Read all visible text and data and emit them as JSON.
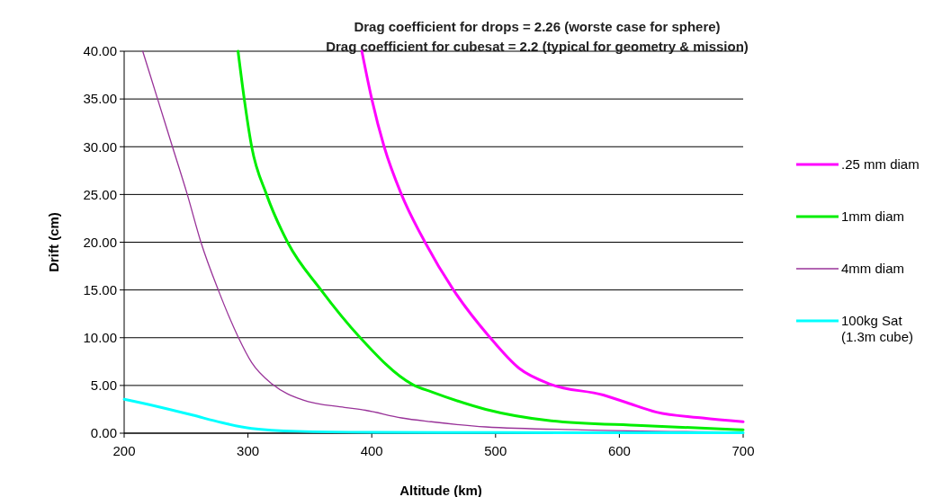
{
  "chart_data": {
    "type": "line",
    "subtitle": "Drag coefficient for drops = 2.26 (worste case for sphere)\nDrag coefficient for cubesat = 2.2 (typical for geometry & mission)",
    "xlabel": "Altitude (km)",
    "ylabel": "Drift (cm)",
    "xlim": [
      200,
      700
    ],
    "xticks": [
      200,
      300,
      400,
      500,
      600,
      700
    ],
    "ylim": [
      0,
      40
    ],
    "yticks": [
      {
        "value": 0,
        "label": "0.00"
      },
      {
        "value": 5,
        "label": "5.00"
      },
      {
        "value": 10,
        "label": "10.00"
      },
      {
        "value": 15,
        "label": "15.00"
      },
      {
        "value": 20,
        "label": "20.00"
      },
      {
        "value": 25,
        "label": "25.00"
      },
      {
        "value": 30,
        "label": "30.00"
      },
      {
        "value": 35,
        "label": "35.00"
      },
      {
        "value": 40,
        "label": "40.00"
      }
    ],
    "grid": "y",
    "legend": "right",
    "marker": "none",
    "line_style": "solid",
    "series": [
      {
        "name": ".25 mm diam",
        "color": "#ff00ff",
        "x": [
          392,
          400,
          410,
          424,
          443,
          466,
          495,
          519,
          545,
          587,
          606,
          630,
          667,
          700
        ],
        "values": [
          40,
          35,
          30,
          25,
          20,
          15,
          10.1,
          6.8,
          5.1,
          4,
          3.2,
          2.2,
          1.6,
          1.2
        ]
      },
      {
        "name": "1mm diam",
        "color": "#00ee00",
        "x": [
          292,
          297,
          303,
          315,
          332,
          359,
          390,
          433,
          449,
          492,
          545,
          618,
          700
        ],
        "values": [
          40,
          35,
          30,
          25,
          20,
          15,
          10.1,
          5.1,
          4.3,
          2.5,
          1.3,
          0.8,
          0.35
        ]
      },
      {
        "name": "4mm diam",
        "color": "#993399",
        "x": [
          215,
          227,
          239,
          251,
          262,
          276,
          292,
          303,
          320,
          344,
          378,
          395,
          424,
          448,
          492,
          570,
          700
        ],
        "values": [
          40,
          35,
          30,
          25,
          20,
          15,
          10.1,
          7.4,
          5.1,
          3.5,
          2.7,
          2.4,
          1.6,
          1.2,
          0.66,
          0.35,
          0.1
        ]
      },
      {
        "name": "100kg Sat\n(1.3m cube)",
        "color": "#00ffff",
        "x": [
          200,
          225,
          255,
          279,
          303,
          340,
          400,
          500,
          600,
          700
        ],
        "values": [
          3.55,
          2.85,
          1.9,
          1.1,
          0.5,
          0.2,
          0.1,
          0.07,
          0.05,
          0.05
        ]
      }
    ]
  }
}
